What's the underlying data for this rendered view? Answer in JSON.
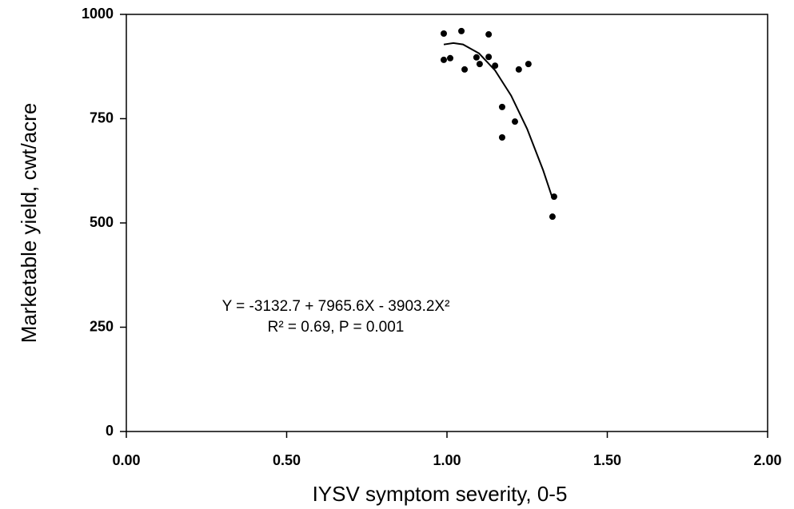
{
  "chart_data": {
    "type": "scatter",
    "xlabel": "IYSV symptom severity, 0-5",
    "ylabel": "Marketable yield, cwt/acre",
    "annotations": [
      "Y = -3132.7 + 7965.6X - 3903.2X²",
      "R² = 0.69, P = 0.001"
    ],
    "xlim": [
      0,
      2
    ],
    "ylim": [
      0,
      1000
    ],
    "xticks": [
      {
        "value": 0,
        "label": "0.00"
      },
      {
        "value": 0.5,
        "label": "0.50"
      },
      {
        "value": 1,
        "label": "1.00"
      },
      {
        "value": 1.5,
        "label": "1.50"
      },
      {
        "value": 2,
        "label": "2.00"
      }
    ],
    "yticks": [
      0,
      250,
      500,
      750,
      1000
    ],
    "series": [
      {
        "type": "scatter",
        "color": "#000000",
        "x": [
          0.99,
          0.99,
          1.01,
          1.045,
          1.055,
          1.092,
          1.102,
          1.13,
          1.13,
          1.15,
          1.224,
          1.254,
          1.172,
          1.172,
          1.212,
          1.334,
          1.329
        ],
        "values": [
          954,
          891,
          895,
          960,
          868,
          897,
          881,
          952,
          898,
          877,
          868,
          881,
          778,
          705,
          743,
          563,
          515
        ]
      },
      {
        "type": "line",
        "color": "#000000",
        "x": [
          0.99,
          1.02,
          1.05,
          1.1,
          1.15,
          1.2,
          1.25,
          1.3,
          1.33
        ],
        "values": [
          927.8,
          931.3,
          927.9,
          906.6,
          865.7,
          805.4,
          725.5,
          626.2,
          557.1
        ]
      }
    ]
  }
}
